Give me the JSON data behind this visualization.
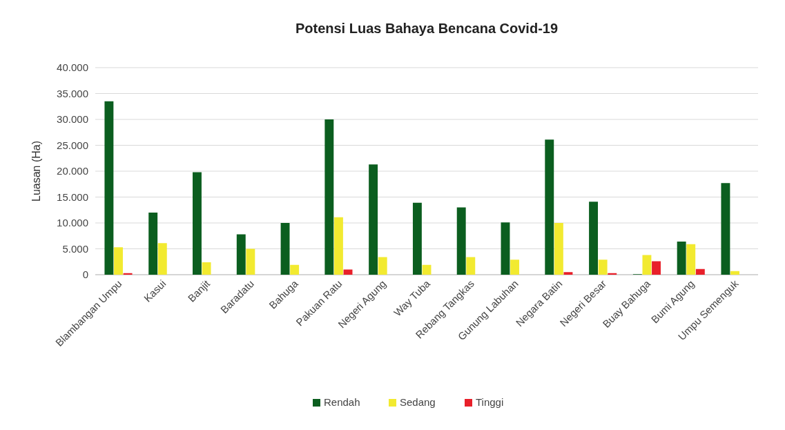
{
  "chart_data": {
    "type": "bar",
    "title": "Potensi Luas Bahaya Bencana Covid-19",
    "ylabel": "Luasan (Ha)",
    "categories": [
      "Blambangan Umpu",
      "Kasui",
      "Banjit",
      "Baradatu",
      "Bahuga",
      "Pakuan Ratu",
      "Negeri Agung",
      "Way Tuba",
      "Rebang Tangkas",
      "Gunung Labuhan",
      "Negara Batin",
      "Negeri Besar",
      "Buay Bahuga",
      "Bumi Agung",
      "Umpu Semenguk"
    ],
    "series": [
      {
        "name": "Rendah",
        "color": "#0b5e1f",
        "values": [
          33500,
          12000,
          19800,
          7800,
          10000,
          30000,
          21300,
          13900,
          13000,
          10100,
          26100,
          14100,
          100,
          6400,
          17700
        ]
      },
      {
        "name": "Sedang",
        "color": "#f2ea30",
        "values": [
          5300,
          6100,
          2400,
          5000,
          1900,
          11100,
          3400,
          1900,
          3400,
          2900,
          10000,
          2900,
          3800,
          5900,
          700
        ]
      },
      {
        "name": "Tinggi",
        "color": "#e8202a",
        "values": [
          300,
          0,
          0,
          0,
          0,
          1000,
          0,
          0,
          0,
          0,
          500,
          300,
          2600,
          1100,
          0
        ]
      }
    ],
    "ylim": [
      0,
      40000
    ],
    "yticks": [
      0,
      {
        "value": 5000,
        "label": "5.000"
      },
      {
        "value": 10000,
        "label": "10.000"
      },
      {
        "value": 15000,
        "label": "15.000"
      },
      {
        "value": 20000,
        "label": "20.000"
      },
      {
        "value": 25000,
        "label": "25.000"
      },
      {
        "value": 30000,
        "label": "30.000"
      },
      {
        "value": 35000,
        "label": "35.000"
      },
      {
        "value": 40000,
        "label": "40.000"
      }
    ],
    "grid": "y",
    "legend": "bottom"
  }
}
